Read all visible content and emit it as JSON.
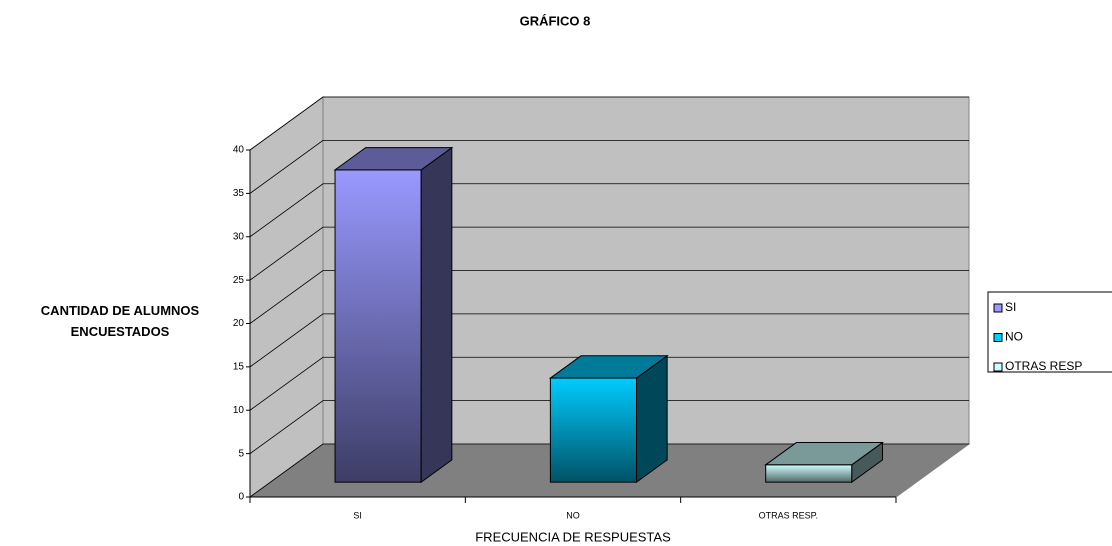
{
  "chart_data": {
    "type": "bar3d",
    "title": "GRÁFICO 8",
    "ylabel": "CANTIDAD DE ALUMNOS ENCUESTADOS",
    "xlabel": "FRECUENCIA DE RESPUESTAS",
    "categories": [
      "SI",
      "NO",
      "OTRAS RESP."
    ],
    "series": [
      {
        "name": "SI",
        "color": "#9999ff",
        "values": [
          36,
          null,
          null
        ]
      },
      {
        "name": "NO",
        "color": "#00ccff",
        "values": [
          null,
          12,
          null
        ]
      },
      {
        "name": "OTRAS RESP",
        "color": "#ccffff",
        "values": [
          null,
          null,
          2
        ]
      }
    ],
    "ylim": [
      0,
      40
    ],
    "yticks": [
      0,
      5,
      10,
      15,
      20,
      25,
      30,
      35,
      40
    ],
    "grid": true,
    "legend": "right"
  }
}
